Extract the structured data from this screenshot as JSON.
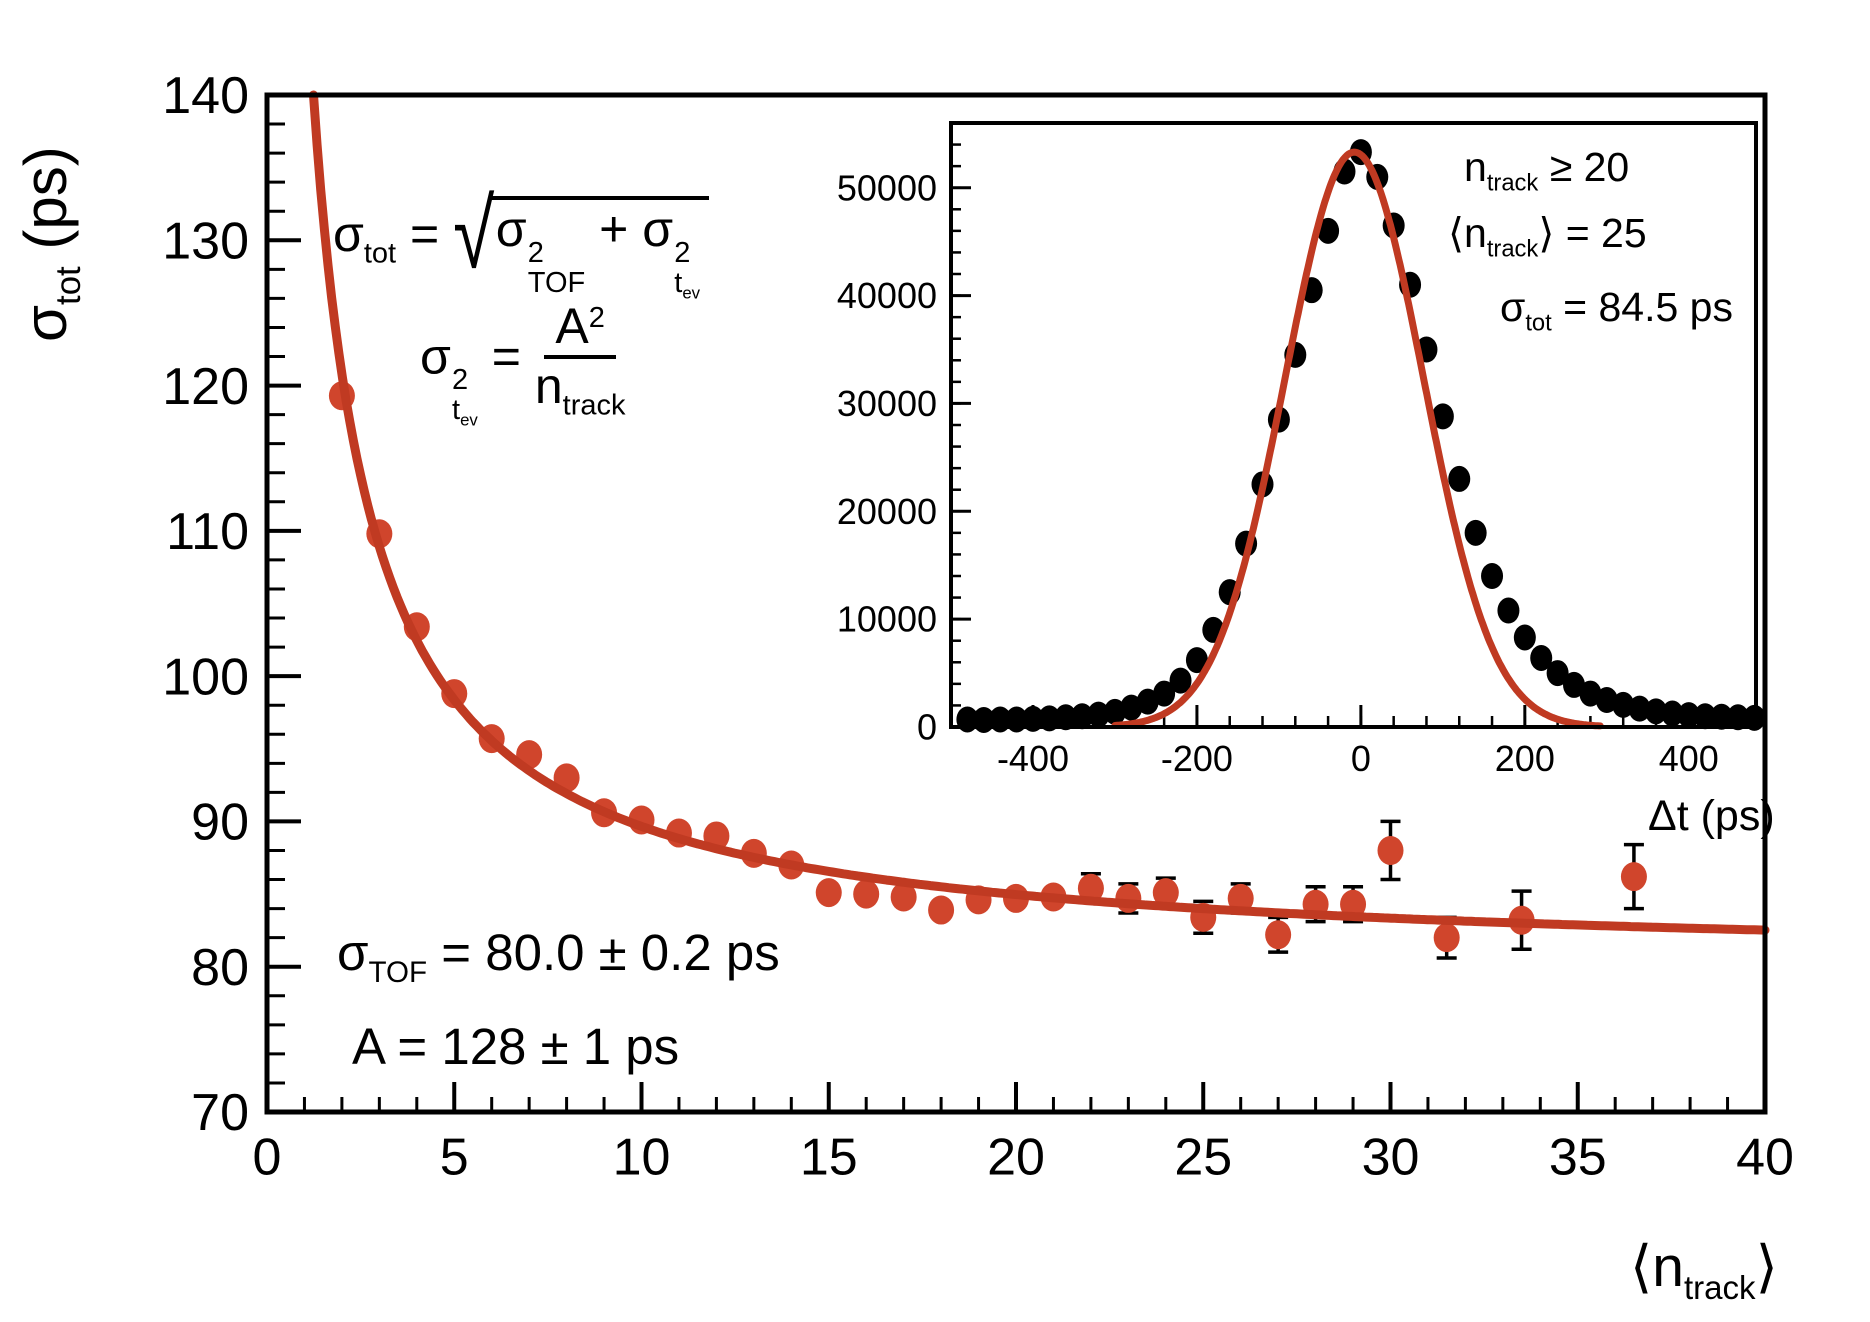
{
  "page": {
    "background": "#ffffff"
  },
  "colors": {
    "fit_red": "#c03a22",
    "point_red": "#d0452c",
    "points_black": "#000000",
    "axis": "#000000"
  },
  "annotations": {
    "y_axis_title": [
      {
        "t": "σ"
      },
      {
        "sub": "tot"
      },
      {
        "t": " (ps)"
      }
    ],
    "x_axis_title": [
      {
        "t": "⟨n"
      },
      {
        "sub": "track"
      },
      {
        "t": "⟩"
      }
    ],
    "formula_sigma_tot": [
      {
        "t": "σ"
      },
      {
        "sub": "tot"
      },
      {
        "t": " = "
      },
      {
        "sqrt": [
          {
            "t": "σ"
          },
          {
            "supsub": {
              "sup": "2",
              "sub": "TOF"
            }
          },
          {
            "t": " + "
          },
          {
            "t": "σ"
          },
          {
            "supsub": {
              "sup": "2",
              "sub": [
                {
                  "t": "t"
                },
                {
                  "sub": "ev"
                }
              ]
            }
          }
        ]
      }
    ],
    "formula_sigma_tev": [
      {
        "t": "σ"
      },
      {
        "supsub": {
          "sup": "2",
          "sub": [
            {
              "t": "t"
            },
            {
              "sub": "ev"
            }
          ]
        }
      },
      {
        "t": " = "
      },
      {
        "frac": {
          "num": [
            {
              "t": "A"
            },
            {
              "sup": "2"
            }
          ],
          "den": [
            {
              "t": "n"
            },
            {
              "sub": "track"
            }
          ]
        }
      }
    ],
    "param_sigma_tof": [
      {
        "t": "σ"
      },
      {
        "sub": "TOF"
      },
      {
        "t": " = 80.0 ± 0.2 ps"
      }
    ],
    "param_A": [
      {
        "t": "A = 128 ± 1 ps"
      }
    ],
    "inset_cut": [
      {
        "t": "n"
      },
      {
        "sub": "track"
      },
      {
        "t": " ≥ 20"
      }
    ],
    "inset_mean": [
      {
        "t": "⟨n"
      },
      {
        "sub": "track"
      },
      {
        "t": "⟩ = 25"
      }
    ],
    "inset_sigma": [
      {
        "t": "σ"
      },
      {
        "sub": "tot"
      },
      {
        "t": " = 84.5 ps"
      }
    ],
    "inset_x_title": [
      {
        "t": "Δt (ps)"
      }
    ]
  },
  "chart_data": [
    {
      "type": "scatter",
      "title": "",
      "xlabel": "<n_track>",
      "ylabel": "sigma_tot (ps)",
      "xlim": [
        0,
        40
      ],
      "ylim": [
        70,
        140
      ],
      "grid": false,
      "x_major": [
        0,
        5,
        10,
        15,
        20,
        25,
        30,
        35,
        40
      ],
      "x_major_labels": [
        "0",
        "5",
        "10",
        "15",
        "20",
        "25",
        "30",
        "35",
        "40"
      ],
      "x_minor_step": 1,
      "y_major": [
        70,
        80,
        90,
        100,
        110,
        120,
        130,
        140
      ],
      "y_major_labels": [
        "70",
        "80",
        "90",
        "100",
        "110",
        "120",
        "130",
        "140"
      ],
      "y_minor_step": 2,
      "fit_results": {
        "sigma_TOF_ps": "80.0 ± 0.2",
        "A_ps": "128 ± 1"
      },
      "series": [
        {
          "name": "measured-points",
          "kind": "points",
          "color": "#d0452c",
          "points": [
            [
              2,
              119.3,
              0
            ],
            [
              3,
              109.8,
              0
            ],
            [
              4,
              103.4,
              0
            ],
            [
              5,
              98.8,
              0
            ],
            [
              6,
              95.7,
              0
            ],
            [
              7,
              94.6,
              0
            ],
            [
              8,
              93.0,
              0
            ],
            [
              9,
              90.6,
              0
            ],
            [
              10,
              90.1,
              0
            ],
            [
              11,
              89.2,
              0
            ],
            [
              12,
              89.0,
              0
            ],
            [
              13,
              87.8,
              0
            ],
            [
              14,
              87.0,
              0
            ],
            [
              15,
              85.1,
              0
            ],
            [
              16,
              85.0,
              0
            ],
            [
              17,
              84.8,
              0
            ],
            [
              18,
              83.9,
              0
            ],
            [
              19,
              84.6,
              0
            ],
            [
              20,
              84.7,
              0
            ],
            [
              21,
              84.8,
              0
            ],
            [
              22,
              85.4,
              1.0
            ],
            [
              23,
              84.7,
              1.0
            ],
            [
              24,
              85.1,
              1.0
            ],
            [
              25,
              83.4,
              1.1
            ],
            [
              26,
              84.7,
              1.0
            ],
            [
              27,
              82.2,
              1.2
            ],
            [
              28,
              84.3,
              1.2
            ],
            [
              29,
              84.3,
              1.2
            ],
            [
              30,
              88.0,
              2.0
            ],
            [
              31.5,
              82.0,
              1.4
            ],
            [
              33.5,
              83.2,
              2.0
            ],
            [
              36.5,
              86.2,
              2.2
            ]
          ]
        },
        {
          "name": "fit-curve",
          "kind": "sqrt_quad",
          "sigma_tof": 80.0,
          "A": 128,
          "x_from": 1.2412,
          "x_to": 40,
          "color": "#c03a22"
        }
      ]
    },
    {
      "type": "scatter",
      "title": "",
      "xlabel": "Delta t (ps)",
      "ylabel": "",
      "xlim": [
        -500,
        482
      ],
      "ylim": [
        0,
        56000
      ],
      "grid": false,
      "x_major": [
        -400,
        -200,
        0,
        200,
        400
      ],
      "x_major_labels": [
        "-400",
        "-200",
        "0",
        "200",
        "400"
      ],
      "x_minor_step": 40,
      "y_major": [
        0,
        10000,
        20000,
        30000,
        40000,
        50000
      ],
      "y_major_labels": [
        "0",
        "10000",
        "20000",
        "30000",
        "40000",
        "50000"
      ],
      "y_minor_step": 2000,
      "inset_labels": {
        "cut": "n_track >= 20",
        "mean": "<n_track> = 25",
        "sigma_tot_ps": 84.5
      },
      "series": [
        {
          "name": "histogram-points",
          "kind": "points",
          "color": "#000000",
          "points": [
            [
              -480,
              700
            ],
            [
              -460,
              650
            ],
            [
              -440,
              700
            ],
            [
              -420,
              700
            ],
            [
              -400,
              750
            ],
            [
              -380,
              800
            ],
            [
              -360,
              900
            ],
            [
              -340,
              1000
            ],
            [
              -320,
              1150
            ],
            [
              -300,
              1400
            ],
            [
              -280,
              1800
            ],
            [
              -260,
              2350
            ],
            [
              -240,
              3100
            ],
            [
              -220,
              4300
            ],
            [
              -200,
              6200
            ],
            [
              -180,
              9000
            ],
            [
              -160,
              12500
            ],
            [
              -140,
              17000
            ],
            [
              -120,
              22500
            ],
            [
              -100,
              28500
            ],
            [
              -80,
              34500
            ],
            [
              -60,
              40500
            ],
            [
              -40,
              46000
            ],
            [
              -20,
              51500
            ],
            [
              0,
              53300
            ],
            [
              20,
              51000
            ],
            [
              40,
              46500
            ],
            [
              60,
              41000
            ],
            [
              80,
              35000
            ],
            [
              100,
              28800
            ],
            [
              120,
              23000
            ],
            [
              140,
              18000
            ],
            [
              160,
              14000
            ],
            [
              180,
              10800
            ],
            [
              200,
              8300
            ],
            [
              220,
              6400
            ],
            [
              240,
              5000
            ],
            [
              260,
              3900
            ],
            [
              280,
              3100
            ],
            [
              300,
              2500
            ],
            [
              320,
              2050
            ],
            [
              340,
              1700
            ],
            [
              360,
              1450
            ],
            [
              380,
              1250
            ],
            [
              400,
              1100
            ],
            [
              420,
              1000
            ],
            [
              440,
              950
            ],
            [
              460,
              900
            ],
            [
              480,
              850
            ]
          ]
        },
        {
          "name": "gauss-fit",
          "kind": "gauss",
          "amp": 53300,
          "mu": -8,
          "sigma": 84.5,
          "x_from": -300,
          "x_to": 292,
          "color": "#c03a22"
        }
      ]
    }
  ]
}
